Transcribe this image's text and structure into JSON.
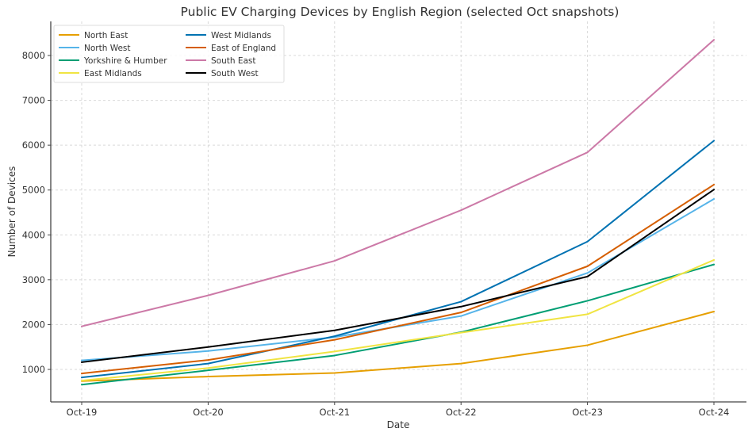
{
  "chart_data": {
    "type": "line",
    "title": "Public EV Charging Devices by English Region (selected Oct snapshots)",
    "xlabel": "Date",
    "ylabel": "Number of Devices",
    "categories": [
      "Oct-19",
      "Oct-20",
      "Oct-21",
      "Oct-22",
      "Oct-23",
      "Oct-24"
    ],
    "yticks": [
      1000,
      2000,
      3000,
      4000,
      5000,
      6000,
      7000,
      8000
    ],
    "ylim": [
      275,
      8760
    ],
    "grid": true,
    "legend_position": "top-left",
    "legend_columns": 2,
    "series": [
      {
        "name": "North East",
        "color": "#E69F00",
        "values": [
          740,
          840,
          920,
          1130,
          1540,
          2290
        ]
      },
      {
        "name": "North West",
        "color": "#56B4E9",
        "values": [
          1200,
          1410,
          1720,
          2190,
          3150,
          4800
        ]
      },
      {
        "name": "Yorkshire & Humber",
        "color": "#009E73",
        "values": [
          660,
          980,
          1310,
          1830,
          2530,
          3340
        ]
      },
      {
        "name": "East Midlands",
        "color": "#F0E442",
        "values": [
          750,
          1030,
          1400,
          1820,
          2230,
          3440
        ]
      },
      {
        "name": "West Midlands",
        "color": "#0072B2",
        "values": [
          820,
          1130,
          1740,
          2510,
          3850,
          6100
        ]
      },
      {
        "name": "East of England",
        "color": "#D55E00",
        "values": [
          910,
          1210,
          1660,
          2270,
          3300,
          5120
        ]
      },
      {
        "name": "South East",
        "color": "#CC79A7",
        "values": [
          1960,
          2650,
          3420,
          4550,
          5840,
          8350
        ]
      },
      {
        "name": "South West",
        "color": "#000000",
        "values": [
          1160,
          1500,
          1870,
          2400,
          3070,
          5010
        ]
      }
    ]
  }
}
